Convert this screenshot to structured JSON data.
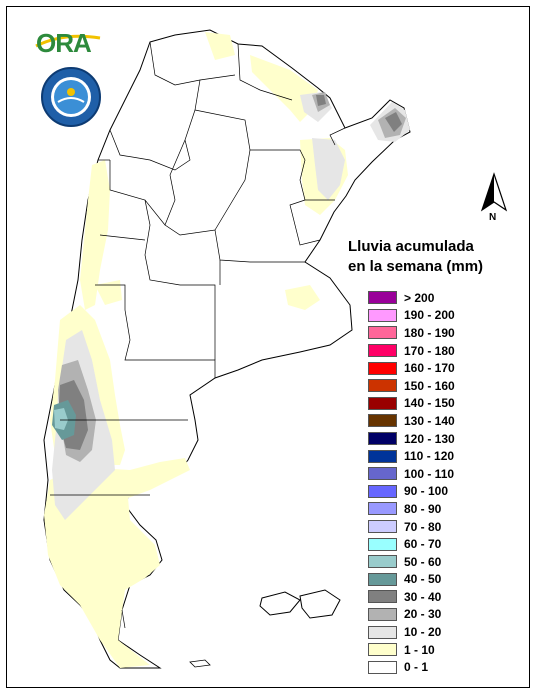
{
  "logos": {
    "ora_text": "ORA",
    "smn_ring_text": "SERVICIO METEOROLOGICO NACIONAL · ARGENTINA"
  },
  "north_label": "N",
  "legend": {
    "title_line1": "Lluvia acumulada",
    "title_line2": "en la semana (mm)",
    "items": [
      {
        "label": "> 200",
        "color": "#990099"
      },
      {
        "label": "190 - 200",
        "color": "#ff99ff"
      },
      {
        "label": "180 - 190",
        "color": "#ff6699"
      },
      {
        "label": "170 - 180",
        "color": "#ff0066"
      },
      {
        "label": "160 - 170",
        "color": "#ff0000"
      },
      {
        "label": "150 - 160",
        "color": "#cc3300"
      },
      {
        "label": "140 - 150",
        "color": "#990000"
      },
      {
        "label": "130 - 140",
        "color": "#663300"
      },
      {
        "label": "120 - 130",
        "color": "#000066"
      },
      {
        "label": "110 - 120",
        "color": "#003399"
      },
      {
        "label": "100 - 110",
        "color": "#6666cc"
      },
      {
        "label": "90 - 100",
        "color": "#6666ff"
      },
      {
        "label": "80 - 90",
        "color": "#9999ff"
      },
      {
        "label": "70 - 80",
        "color": "#ccccff"
      },
      {
        "label": "60 - 70",
        "color": "#99ffff"
      },
      {
        "label": "50 - 60",
        "color": "#99cccc"
      },
      {
        "label": "40 - 50",
        "color": "#669999"
      },
      {
        "label": "30 - 40",
        "color": "#808080"
      },
      {
        "label": "20 - 30",
        "color": "#b2b2b2"
      },
      {
        "label": "10 - 20",
        "color": "#e6e6e6"
      },
      {
        "label": "1 - 10",
        "color": "#ffffcc"
      },
      {
        "label": "0 - 1",
        "color": "#ffffff"
      }
    ]
  }
}
